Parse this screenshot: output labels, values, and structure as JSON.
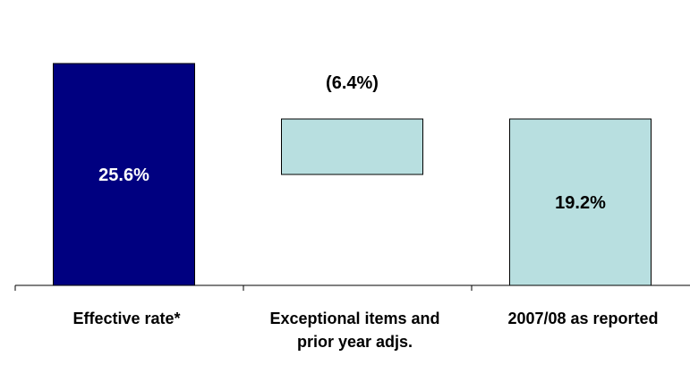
{
  "chart_data": {
    "type": "bar",
    "subtype": "waterfall",
    "categories": [
      "Effective rate*",
      "Exceptional items and\nprior year adjs.",
      "2007/08 as reported"
    ],
    "values": [
      25.6,
      -6.4,
      19.2
    ],
    "bases": [
      0,
      19.2,
      0
    ],
    "value_labels": [
      "25.6%",
      "(6.4%)",
      "19.2%"
    ],
    "title": "",
    "xlabel": "",
    "ylabel": "",
    "ylim": [
      0,
      25.6
    ],
    "grid": false,
    "legend": "none",
    "colors": [
      "#000080",
      "#b8dfe0",
      "#b8dfe0"
    ],
    "edge_color": "#000000"
  }
}
